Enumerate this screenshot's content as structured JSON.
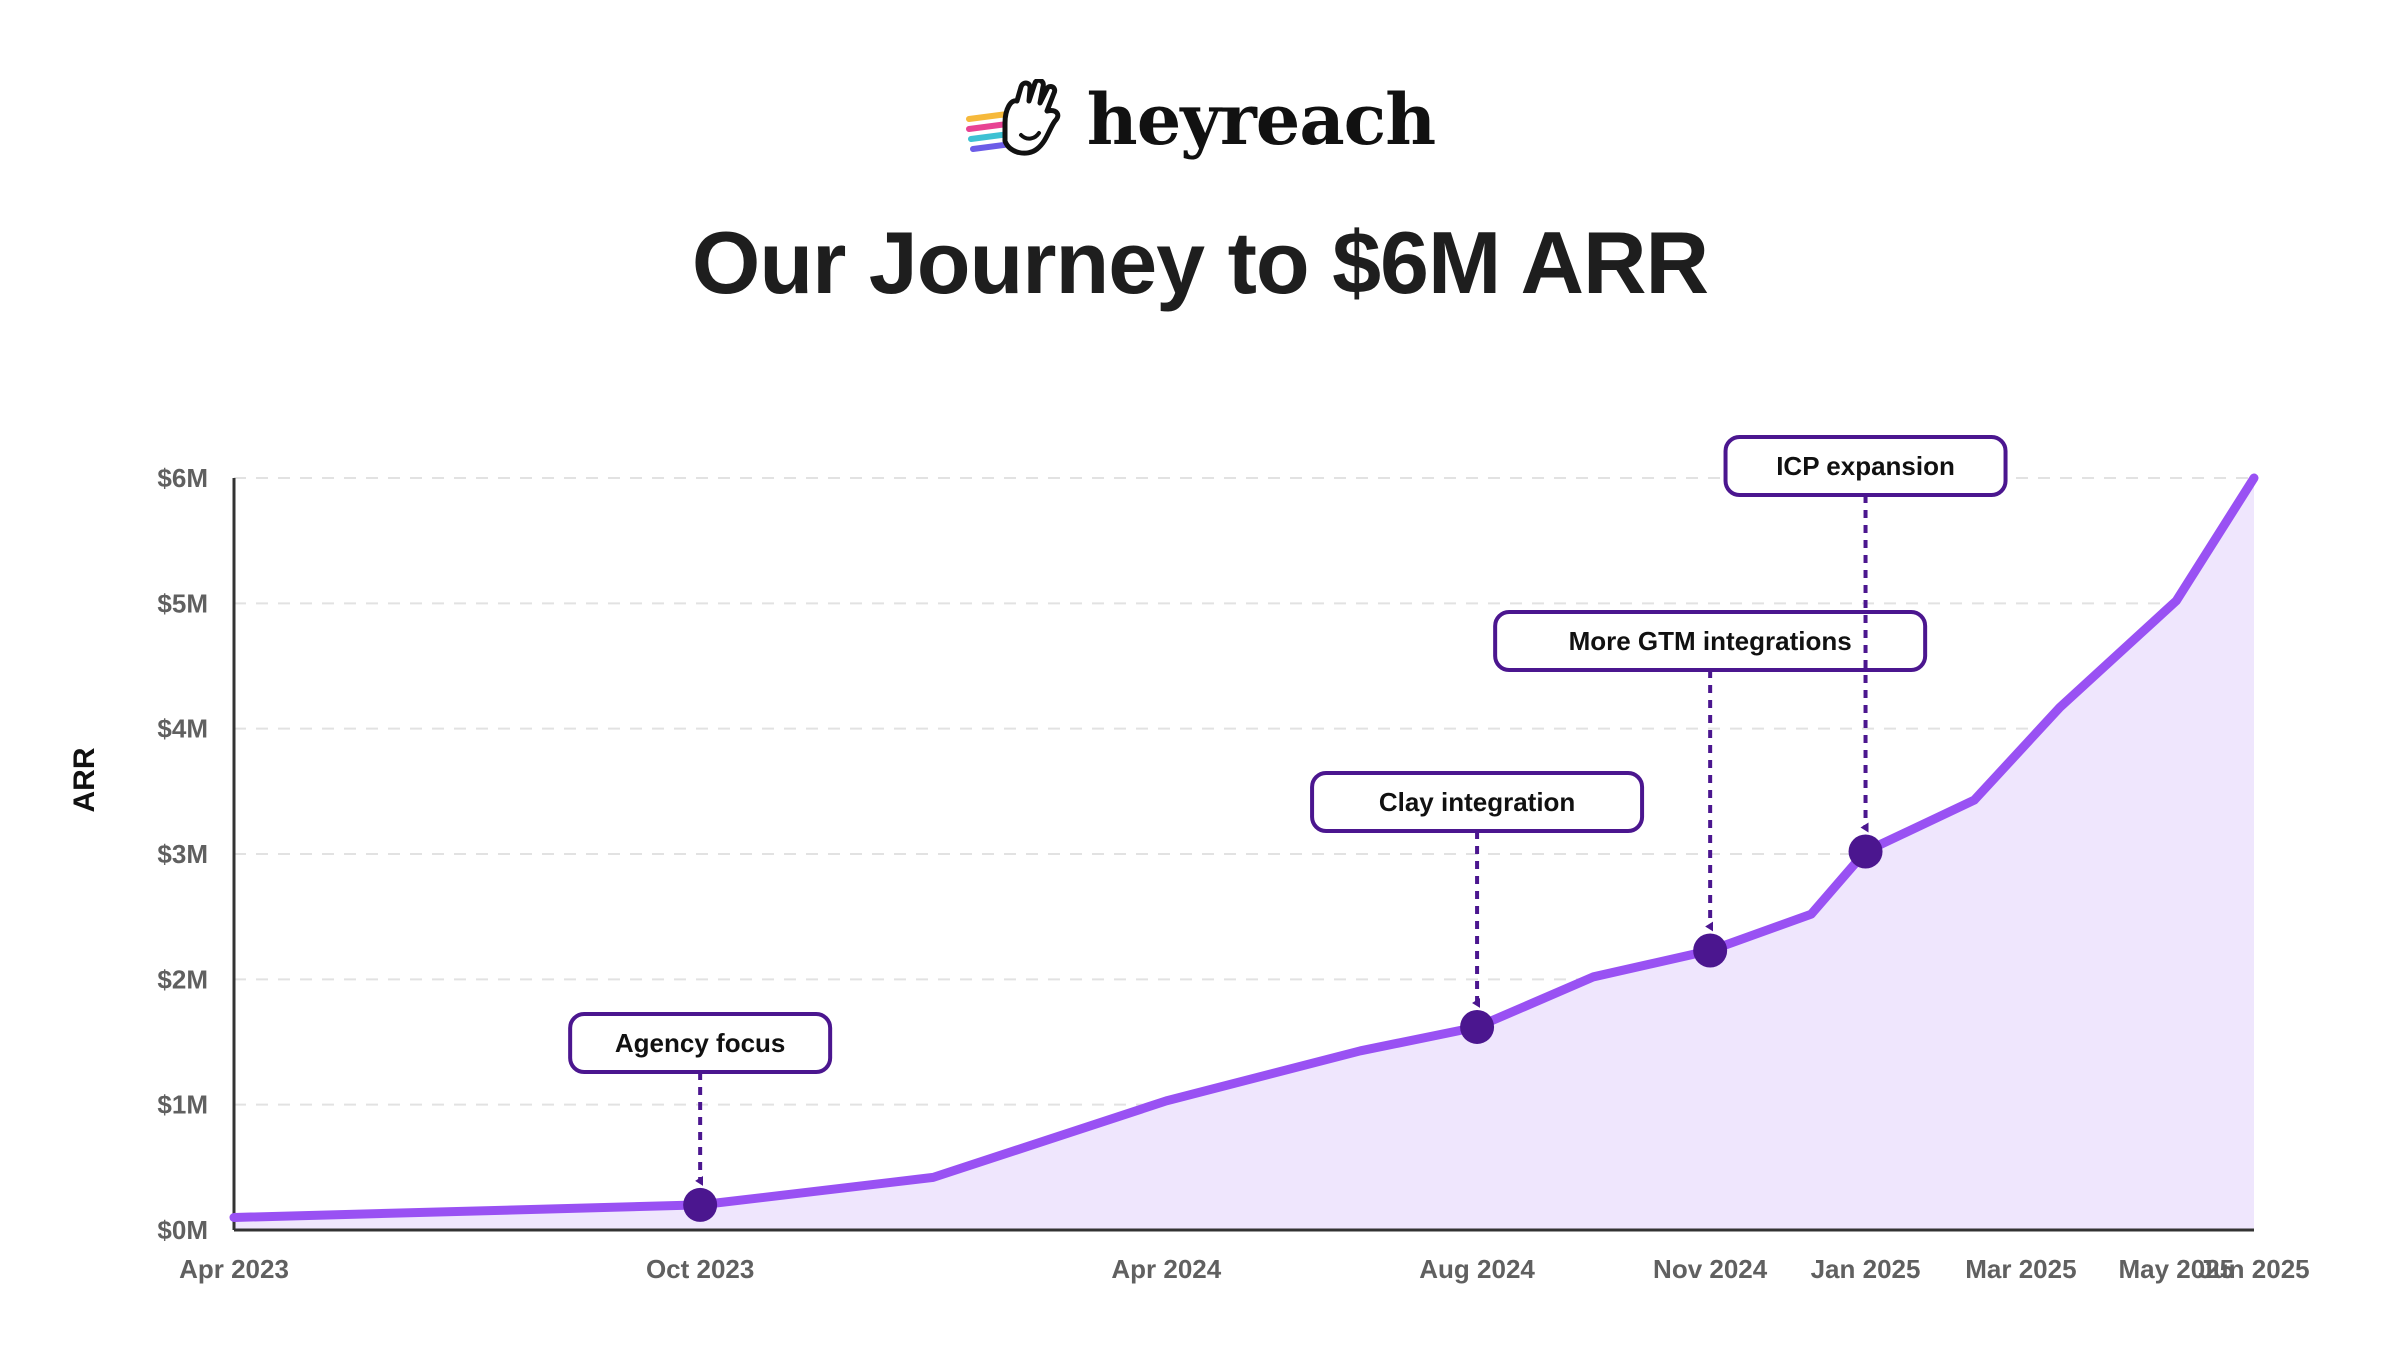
{
  "brand": {
    "name": "heyreach",
    "icon": "waving-hand-icon"
  },
  "title": "Our Journey to $6M ARR",
  "colors": {
    "line": "#9951f3",
    "area": "#efe6fd",
    "marker": "#4b168f",
    "annotation": "#4b168f",
    "grid": "#e2e2e2",
    "axis": "#333333"
  },
  "chart_data": {
    "type": "area",
    "ylabel": "ARR",
    "xlabel": "",
    "ylim": [
      0,
      6
    ],
    "y_ticks": [
      {
        "value": 0,
        "label": "$0M"
      },
      {
        "value": 1,
        "label": "$1M"
      },
      {
        "value": 2,
        "label": "$2M"
      },
      {
        "value": 3,
        "label": "$3M"
      },
      {
        "value": 4,
        "label": "$4M"
      },
      {
        "value": 5,
        "label": "$5M"
      },
      {
        "value": 6,
        "label": "$6M"
      }
    ],
    "x_ticks": [
      {
        "value": 0,
        "label": "Apr 2023"
      },
      {
        "value": 6,
        "label": "Oct 2023"
      },
      {
        "value": 12,
        "label": "Apr 2024"
      },
      {
        "value": 16,
        "label": "Aug 2024"
      },
      {
        "value": 19,
        "label": "Nov 2024"
      },
      {
        "value": 21,
        "label": "Jan 2025"
      },
      {
        "value": 23,
        "label": "Mar 2025"
      },
      {
        "value": 25,
        "label": "May 2025"
      },
      {
        "value": 26,
        "label": "Jun 2025"
      }
    ],
    "x_range": [
      0,
      26
    ],
    "grid": true,
    "series": [
      {
        "points": [
          {
            "x": 0,
            "y": 0.1
          },
          {
            "x": 6,
            "y": 0.2
          },
          {
            "x": 9,
            "y": 0.42
          },
          {
            "x": 12,
            "y": 1.03
          },
          {
            "x": 14.5,
            "y": 1.43
          },
          {
            "x": 16,
            "y": 1.62
          },
          {
            "x": 17.5,
            "y": 2.02
          },
          {
            "x": 19,
            "y": 2.23
          },
          {
            "x": 20.3,
            "y": 2.52
          },
          {
            "x": 21,
            "y": 3.02
          },
          {
            "x": 22.4,
            "y": 3.43
          },
          {
            "x": 23.5,
            "y": 4.17
          },
          {
            "x": 25,
            "y": 5.02
          },
          {
            "x": 26,
            "y": 6.0
          }
        ]
      }
    ],
    "annotations": [
      {
        "label": "Agency focus",
        "x": 6,
        "y": 0.2
      },
      {
        "label": "Clay integration",
        "x": 16,
        "y": 1.62
      },
      {
        "label": "More GTM integrations",
        "x": 19,
        "y": 2.23
      },
      {
        "label": "ICP expansion",
        "x": 21,
        "y": 3.02
      }
    ]
  }
}
